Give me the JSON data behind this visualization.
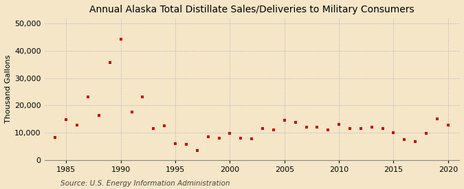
{
  "title": "Annual Alaska Total Distillate Sales/Deliveries to Military Consumers",
  "ylabel": "Thousand Gallons",
  "source": "Source: U.S. Energy Information Administration",
  "background_color": "#f5e6c8",
  "plot_background_color": "#f5e6c8",
  "marker_color": "#cc0000",
  "grid_color": "#bbbbbb",
  "years": [
    1984,
    1985,
    1986,
    1987,
    1988,
    1989,
    1990,
    1991,
    1992,
    1993,
    1994,
    1995,
    1996,
    1997,
    1998,
    1999,
    2000,
    2001,
    2002,
    2003,
    2004,
    2005,
    2006,
    2007,
    2008,
    2009,
    2010,
    2011,
    2012,
    2013,
    2014,
    2015,
    2016,
    2017,
    2018,
    2019,
    2020
  ],
  "values": [
    8200,
    14800,
    12800,
    23000,
    16200,
    35800,
    44200,
    17500,
    23000,
    11500,
    12500,
    6000,
    5800,
    3500,
    8500,
    8000,
    9800,
    8000,
    7800,
    11500,
    11000,
    14500,
    13800,
    12000,
    12000,
    11000,
    13000,
    11500,
    11500,
    12000,
    11500,
    10000,
    7500,
    6800,
    9800,
    15000,
    12800
  ],
  "ylim": [
    0,
    52000
  ],
  "xlim": [
    1983,
    2021
  ],
  "yticks": [
    0,
    10000,
    20000,
    30000,
    40000,
    50000
  ],
  "xticks": [
    1985,
    1990,
    1995,
    2000,
    2005,
    2010,
    2015,
    2020
  ],
  "title_fontsize": 10,
  "label_fontsize": 8,
  "tick_fontsize": 8,
  "source_fontsize": 7.5,
  "marker_size": 10
}
